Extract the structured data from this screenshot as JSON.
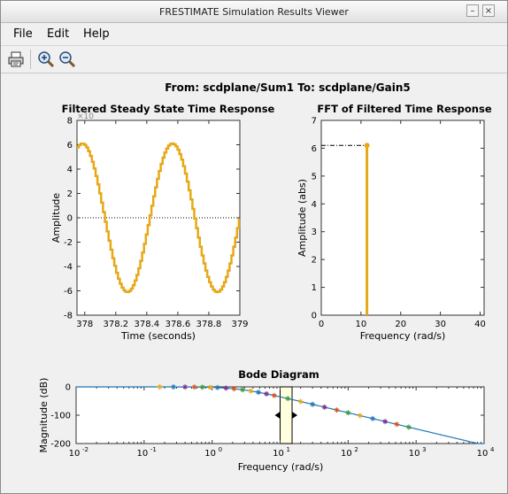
{
  "window": {
    "title": "FRESTIMATE Simulation Results Viewer"
  },
  "menu": {
    "file": "File",
    "edit": "Edit",
    "help": "Help"
  },
  "toolbar": {
    "print_icon": "printer-icon",
    "zoom_in_icon": "zoom-in-icon",
    "zoom_out_icon": "zoom-out-icon"
  },
  "header": {
    "from_to": "From: scdplane/Sum1  To: scdplane/Gain5"
  },
  "colors": {
    "signal": "#e6a817",
    "bode": "#1f77b4"
  },
  "chart_data": [
    {
      "type": "line",
      "title": "Filtered Steady State Time Response",
      "xlabel": "Time (seconds)",
      "ylabel": "Amplitude",
      "exponent": "×10",
      "xlim": [
        377.95,
        379.0
      ],
      "ylim": [
        -8,
        8
      ],
      "xticks": [
        "378",
        "378.2",
        "378.4",
        "378.6",
        "378.8",
        "379"
      ],
      "xtick_values": [
        378,
        378.2,
        378.4,
        378.6,
        378.8,
        379
      ],
      "yticks": [
        "8",
        "6",
        "4",
        "2",
        "0",
        "-2",
        "-4",
        "-6",
        "-8"
      ],
      "ytick_values": [
        8,
        6,
        4,
        2,
        0,
        -2,
        -4,
        -6,
        -8
      ],
      "amplitude": 6.1,
      "period_s": 0.58,
      "phase_peak_at": 377.98,
      "zero_line": true
    },
    {
      "type": "bar",
      "title": "FFT of Filtered Time Response",
      "xlabel": "Frequency (rad/s)",
      "ylabel": "Amplitude (abs)",
      "xlim": [
        0,
        41
      ],
      "ylim": [
        0,
        7
      ],
      "xticks": [
        "0",
        "10",
        "20",
        "30",
        "40"
      ],
      "xtick_values": [
        0,
        10,
        20,
        30,
        40
      ],
      "yticks": [
        "7",
        "6",
        "5",
        "4",
        "3",
        "2",
        "1",
        "0"
      ],
      "ytick_values": [
        7,
        6,
        5,
        4,
        3,
        2,
        1,
        0
      ],
      "stem_x": 11.5,
      "stem_y": 6.1
    },
    {
      "type": "line",
      "title": "Bode Diagram",
      "xlabel": "Frequency  (rad/s)",
      "ylabel": "Magnitude (dB)",
      "xscale": "log",
      "xlim": [
        0.01,
        10000
      ],
      "ylim": [
        -200,
        0
      ],
      "xticks": [
        "10",
        "10",
        "10",
        "10",
        "10",
        "10",
        "10"
      ],
      "xtick_exponents": [
        "-2",
        "-1",
        "0",
        "1",
        "2",
        "3",
        "4"
      ],
      "xtick_values": [
        0.01,
        0.1,
        1,
        10,
        100,
        1000,
        10000
      ],
      "yticks": [
        "0",
        "-100",
        "-200"
      ],
      "ytick_values": [
        0,
        -100,
        -200
      ],
      "corner_freq": 2.5,
      "rolloff_db_per_decade": -57,
      "marker_freqs": [
        0.17,
        0.27,
        0.4,
        0.55,
        0.72,
        0.95,
        1.2,
        1.6,
        2.1,
        2.8,
        3.7,
        4.8,
        6.3,
        8.2,
        13,
        20,
        30,
        45,
        68,
        100,
        150,
        230,
        350,
        520,
        780
      ],
      "highlight_range": [
        10,
        15
      ]
    }
  ]
}
